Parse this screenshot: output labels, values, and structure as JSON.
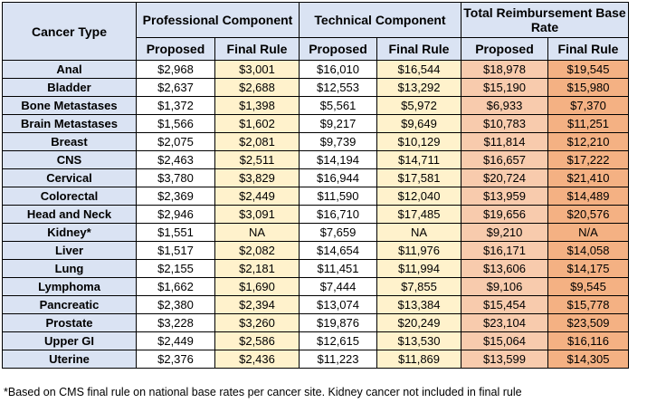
{
  "header": {
    "type_label": "Cancer Type",
    "groups": [
      "Professional Component",
      "Technical Component",
      "Total Reimbursement Base Rate"
    ],
    "sub": [
      "Proposed",
      "Final Rule",
      "Proposed",
      "Final Rule",
      "Proposed",
      "Final Rule"
    ]
  },
  "rows": [
    {
      "name": "Anal",
      "vals": [
        "$2,968",
        "$3,001",
        "$16,010",
        "$16,544",
        "$18,978",
        "$19,545"
      ]
    },
    {
      "name": "Bladder",
      "vals": [
        "$2,637",
        "$2,688",
        "$12,553",
        "$13,292",
        "$15,190",
        "$15,980"
      ]
    },
    {
      "name": "Bone Metastases",
      "vals": [
        "$1,372",
        "$1,398",
        "$5,561",
        "$5,972",
        "$6,933",
        "$7,370"
      ]
    },
    {
      "name": "Brain Metastases",
      "vals": [
        "$1,566",
        "$1,602",
        "$9,217",
        "$9,649",
        "$10,783",
        "$11,251"
      ]
    },
    {
      "name": "Breast",
      "vals": [
        "$2,075",
        "$2,081",
        "$9,739",
        "$10,129",
        "$11,814",
        "$12,210"
      ]
    },
    {
      "name": "CNS",
      "vals": [
        "$2,463",
        "$2,511",
        "$14,194",
        "$14,711",
        "$16,657",
        "$17,222"
      ]
    },
    {
      "name": "Cervical",
      "vals": [
        "$3,780",
        "$3,829",
        "$16,944",
        "$17,581",
        "$20,724",
        "$21,410"
      ]
    },
    {
      "name": "Colorectal",
      "vals": [
        "$2,369",
        "$2,449",
        "$11,590",
        "$12,040",
        "$13,959",
        "$14,489"
      ]
    },
    {
      "name": "Head and Neck",
      "vals": [
        "$2,946",
        "$3,091",
        "$16,710",
        "$17,485",
        "$19,656",
        "$20,576"
      ]
    },
    {
      "name": "Kidney*",
      "vals": [
        "$1,551",
        "NA",
        "$7,659",
        "NA",
        "$9,210",
        "N/A"
      ]
    },
    {
      "name": "Liver",
      "vals": [
        "$1,517",
        "$2,082",
        "$14,654",
        "$11,976",
        "$16,171",
        "$14,058"
      ]
    },
    {
      "name": "Lung",
      "vals": [
        "$2,155",
        "$2,181",
        "$11,451",
        "$11,994",
        "$13,606",
        "$14,175"
      ]
    },
    {
      "name": "Lymphoma",
      "vals": [
        "$1,662",
        "$1,690",
        "$7,444",
        "$7,855",
        "$9,106",
        "$9,545"
      ]
    },
    {
      "name": "Pancreatic",
      "vals": [
        "$2,380",
        "$2,394",
        "$13,074",
        "$13,384",
        "$15,454",
        "$15,778"
      ]
    },
    {
      "name": "Prostate",
      "vals": [
        "$3,228",
        "$3,260",
        "$19,876",
        "$20,249",
        "$23,104",
        "$23,509"
      ]
    },
    {
      "name": "Upper GI",
      "vals": [
        "$2,449",
        "$2,586",
        "$12,615",
        "$13,530",
        "$15,064",
        "$16,116"
      ]
    },
    {
      "name": "Uterine",
      "vals": [
        "$2,376",
        "$2,436",
        "$11,223",
        "$11,869",
        "$13,599",
        "$14,305"
      ]
    }
  ],
  "footnote": "*Based on CMS final rule on national base rates per cancer site. Kidney cancer not included in final rule",
  "colors": {
    "header_fill": "#dae3f3",
    "final_rule_fill": "#fff2cc",
    "total_proposed_fill": "#f8cbad",
    "total_final_fill": "#f4b183"
  }
}
